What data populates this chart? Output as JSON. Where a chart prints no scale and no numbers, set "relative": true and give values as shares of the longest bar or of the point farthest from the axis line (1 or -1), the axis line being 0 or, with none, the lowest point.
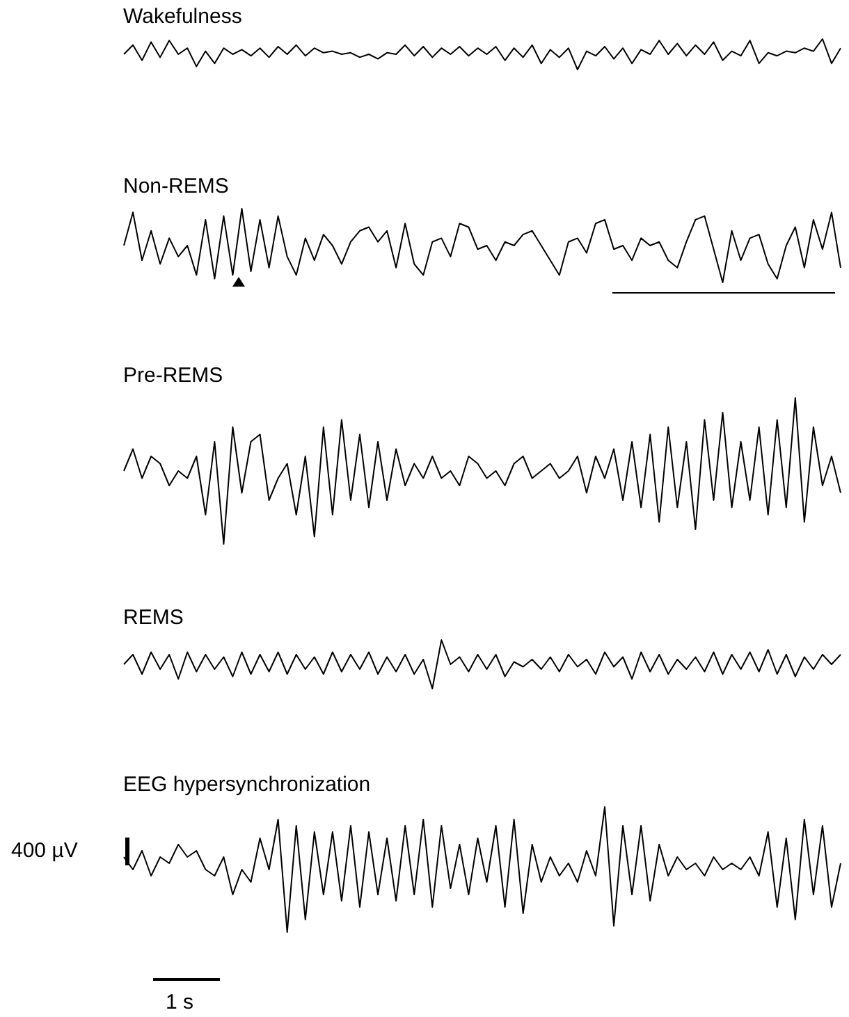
{
  "chart_data": [
    {
      "type": "line",
      "title": "Wakefulness",
      "relative": true,
      "color": "#000000",
      "categories": [
        null,
        null,
        null,
        null,
        null,
        null,
        null,
        null,
        null,
        null,
        null,
        null,
        null,
        null,
        null,
        null,
        null,
        null,
        null,
        null,
        null,
        null,
        null,
        null,
        null,
        null,
        null,
        null,
        null,
        null,
        null,
        null,
        null,
        null,
        null,
        null,
        null,
        null,
        null,
        null,
        null,
        null,
        null,
        null,
        null,
        null,
        null,
        null,
        null,
        null,
        null,
        null,
        null,
        null,
        null,
        null,
        null,
        null,
        null,
        null,
        null,
        null,
        null,
        null,
        null,
        null,
        null,
        null,
        null,
        null,
        null,
        null,
        null,
        null,
        null,
        null,
        null,
        null,
        null,
        null
      ],
      "values": [
        0.5,
        0.8,
        0.3,
        0.9,
        0.4,
        0.95,
        0.5,
        0.7,
        0.1,
        0.6,
        0.2,
        0.7,
        0.5,
        0.65,
        0.45,
        0.7,
        0.4,
        0.75,
        0.5,
        0.8,
        0.45,
        0.7,
        0.55,
        0.6,
        0.5,
        0.55,
        0.4,
        0.5,
        0.35,
        0.55,
        0.5,
        0.8,
        0.45,
        0.75,
        0.4,
        0.7,
        0.5,
        0.75,
        0.45,
        0.7,
        0.5,
        0.75,
        0.3,
        0.7,
        0.4,
        0.8,
        0.2,
        0.65,
        0.4,
        0.7,
        0.0,
        0.6,
        0.45,
        0.75,
        0.35,
        0.7,
        0.2,
        0.65,
        0.5,
        0.95,
        0.5,
        0.85,
        0.45,
        0.8,
        0.5,
        0.9,
        0.3,
        0.6,
        0.45,
        0.95,
        0.2,
        0.55,
        0.45,
        0.6,
        0.55,
        0.7,
        0.6,
        1.0,
        0.2,
        0.7
      ]
    },
    {
      "type": "line",
      "title": "Non-REMS",
      "relative": true,
      "color": "#000000",
      "categories": [
        null,
        null,
        null,
        null,
        null,
        null,
        null,
        null,
        null,
        null,
        null,
        null,
        null,
        null,
        null,
        null,
        null,
        null,
        null,
        null,
        null,
        null,
        null,
        null,
        null,
        null,
        null,
        null,
        null,
        null,
        null,
        null,
        null,
        null,
        null,
        null,
        null,
        null,
        null,
        null,
        null,
        null,
        null,
        null,
        null,
        null,
        null,
        null,
        null,
        null,
        null,
        null,
        null,
        null,
        null,
        null,
        null,
        null,
        null,
        null,
        null,
        null,
        null,
        null,
        null,
        null,
        null,
        null,
        null,
        null,
        null,
        null,
        null,
        null,
        null,
        null,
        null,
        null,
        null,
        null
      ],
      "values": [
        0.5,
        0.95,
        0.3,
        0.7,
        0.25,
        0.6,
        0.35,
        0.5,
        0.1,
        0.85,
        0.05,
        0.9,
        0.1,
        1.0,
        0.15,
        0.85,
        0.2,
        0.9,
        0.35,
        0.1,
        0.6,
        0.3,
        0.65,
        0.5,
        0.25,
        0.55,
        0.7,
        0.75,
        0.55,
        0.7,
        0.2,
        0.8,
        0.25,
        0.1,
        0.55,
        0.6,
        0.35,
        0.8,
        0.75,
        0.45,
        0.5,
        0.3,
        0.55,
        0.5,
        0.65,
        0.7,
        0.5,
        0.3,
        0.1,
        0.55,
        0.6,
        0.4,
        0.8,
        0.85,
        0.45,
        0.5,
        0.3,
        0.6,
        0.5,
        0.55,
        0.3,
        0.2,
        0.55,
        0.85,
        0.9,
        0.45,
        0.0,
        0.7,
        0.3,
        0.6,
        0.65,
        0.25,
        0.05,
        0.5,
        0.75,
        0.2,
        0.85,
        0.45,
        0.95,
        0.2
      ]
    },
    {
      "type": "line",
      "title": "Pre-REMS",
      "relative": true,
      "color": "#000000",
      "categories": [
        null,
        null,
        null,
        null,
        null,
        null,
        null,
        null,
        null,
        null,
        null,
        null,
        null,
        null,
        null,
        null,
        null,
        null,
        null,
        null,
        null,
        null,
        null,
        null,
        null,
        null,
        null,
        null,
        null,
        null,
        null,
        null,
        null,
        null,
        null,
        null,
        null,
        null,
        null,
        null,
        null,
        null,
        null,
        null,
        null,
        null,
        null,
        null,
        null,
        null,
        null,
        null,
        null,
        null,
        null,
        null,
        null,
        null,
        null,
        null,
        null,
        null,
        null,
        null,
        null,
        null,
        null,
        null,
        null,
        null,
        null,
        null,
        null,
        null,
        null,
        null,
        null,
        null,
        null,
        null
      ],
      "values": [
        0.5,
        0.65,
        0.45,
        0.6,
        0.55,
        0.4,
        0.5,
        0.45,
        0.6,
        0.2,
        0.7,
        0.0,
        0.8,
        0.35,
        0.7,
        0.75,
        0.3,
        0.45,
        0.55,
        0.2,
        0.6,
        0.05,
        0.8,
        0.2,
        0.85,
        0.3,
        0.75,
        0.25,
        0.7,
        0.3,
        0.65,
        0.4,
        0.55,
        0.45,
        0.6,
        0.45,
        0.5,
        0.4,
        0.6,
        0.55,
        0.45,
        0.5,
        0.4,
        0.55,
        0.6,
        0.45,
        0.5,
        0.55,
        0.45,
        0.5,
        0.6,
        0.35,
        0.6,
        0.45,
        0.65,
        0.3,
        0.7,
        0.25,
        0.75,
        0.15,
        0.8,
        0.25,
        0.7,
        0.1,
        0.85,
        0.3,
        0.9,
        0.25,
        0.7,
        0.3,
        0.8,
        0.2,
        0.85,
        0.25,
        1.0,
        0.15,
        0.8,
        0.4,
        0.6,
        0.35
      ]
    },
    {
      "type": "line",
      "title": "REMS",
      "relative": true,
      "color": "#000000",
      "categories": [
        null,
        null,
        null,
        null,
        null,
        null,
        null,
        null,
        null,
        null,
        null,
        null,
        null,
        null,
        null,
        null,
        null,
        null,
        null,
        null,
        null,
        null,
        null,
        null,
        null,
        null,
        null,
        null,
        null,
        null,
        null,
        null,
        null,
        null,
        null,
        null,
        null,
        null,
        null,
        null,
        null,
        null,
        null,
        null,
        null,
        null,
        null,
        null,
        null,
        null,
        null,
        null,
        null,
        null,
        null,
        null,
        null,
        null,
        null,
        null,
        null,
        null,
        null,
        null,
        null,
        null,
        null,
        null,
        null,
        null,
        null,
        null,
        null,
        null,
        null,
        null,
        null,
        null,
        null,
        null
      ],
      "values": [
        0.5,
        0.7,
        0.3,
        0.75,
        0.4,
        0.7,
        0.2,
        0.75,
        0.35,
        0.7,
        0.4,
        0.65,
        0.25,
        0.75,
        0.3,
        0.7,
        0.35,
        0.75,
        0.3,
        0.7,
        0.4,
        0.65,
        0.3,
        0.75,
        0.35,
        0.7,
        0.4,
        0.75,
        0.3,
        0.65,
        0.35,
        0.7,
        0.3,
        0.6,
        0.0,
        1.0,
        0.5,
        0.65,
        0.35,
        0.7,
        0.4,
        0.7,
        0.25,
        0.55,
        0.45,
        0.6,
        0.4,
        0.65,
        0.35,
        0.7,
        0.45,
        0.6,
        0.3,
        0.75,
        0.45,
        0.65,
        0.2,
        0.75,
        0.35,
        0.7,
        0.3,
        0.6,
        0.4,
        0.65,
        0.35,
        0.75,
        0.3,
        0.7,
        0.4,
        0.75,
        0.35,
        0.8,
        0.3,
        0.7,
        0.25,
        0.65,
        0.4,
        0.7,
        0.5,
        0.7
      ]
    },
    {
      "type": "line",
      "title": "EEG hypersynchronization",
      "relative": true,
      "color": "#000000",
      "annotations": [
        "400 µV",
        "1 s"
      ],
      "categories": [
        null,
        null,
        null,
        null,
        null,
        null,
        null,
        null,
        null,
        null,
        null,
        null,
        null,
        null,
        null,
        null,
        null,
        null,
        null,
        null,
        null,
        null,
        null,
        null,
        null,
        null,
        null,
        null,
        null,
        null,
        null,
        null,
        null,
        null,
        null,
        null,
        null,
        null,
        null,
        null,
        null,
        null,
        null,
        null,
        null,
        null,
        null,
        null,
        null,
        null,
        null,
        null,
        null,
        null,
        null,
        null,
        null,
        null,
        null,
        null,
        null,
        null,
        null,
        null,
        null,
        null,
        null,
        null,
        null,
        null,
        null,
        null,
        null,
        null,
        null,
        null,
        null,
        null,
        null,
        null
      ],
      "values": [
        0.6,
        0.5,
        0.65,
        0.45,
        0.6,
        0.55,
        0.7,
        0.6,
        0.65,
        0.5,
        0.45,
        0.6,
        0.3,
        0.5,
        0.4,
        0.75,
        0.5,
        0.9,
        0.0,
        0.85,
        0.1,
        0.8,
        0.3,
        0.8,
        0.25,
        0.85,
        0.2,
        0.8,
        0.3,
        0.75,
        0.25,
        0.85,
        0.3,
        0.9,
        0.2,
        0.85,
        0.35,
        0.7,
        0.3,
        0.75,
        0.4,
        0.85,
        0.2,
        0.9,
        0.15,
        0.7,
        0.4,
        0.6,
        0.45,
        0.55,
        0.4,
        0.65,
        0.45,
        1.0,
        0.05,
        0.85,
        0.3,
        0.85,
        0.25,
        0.7,
        0.45,
        0.6,
        0.5,
        0.55,
        0.45,
        0.6,
        0.5,
        0.55,
        0.5,
        0.6,
        0.45,
        0.8,
        0.2,
        0.75,
        0.1,
        0.9,
        0.3,
        0.85,
        0.2,
        0.55
      ]
    }
  ]
}
